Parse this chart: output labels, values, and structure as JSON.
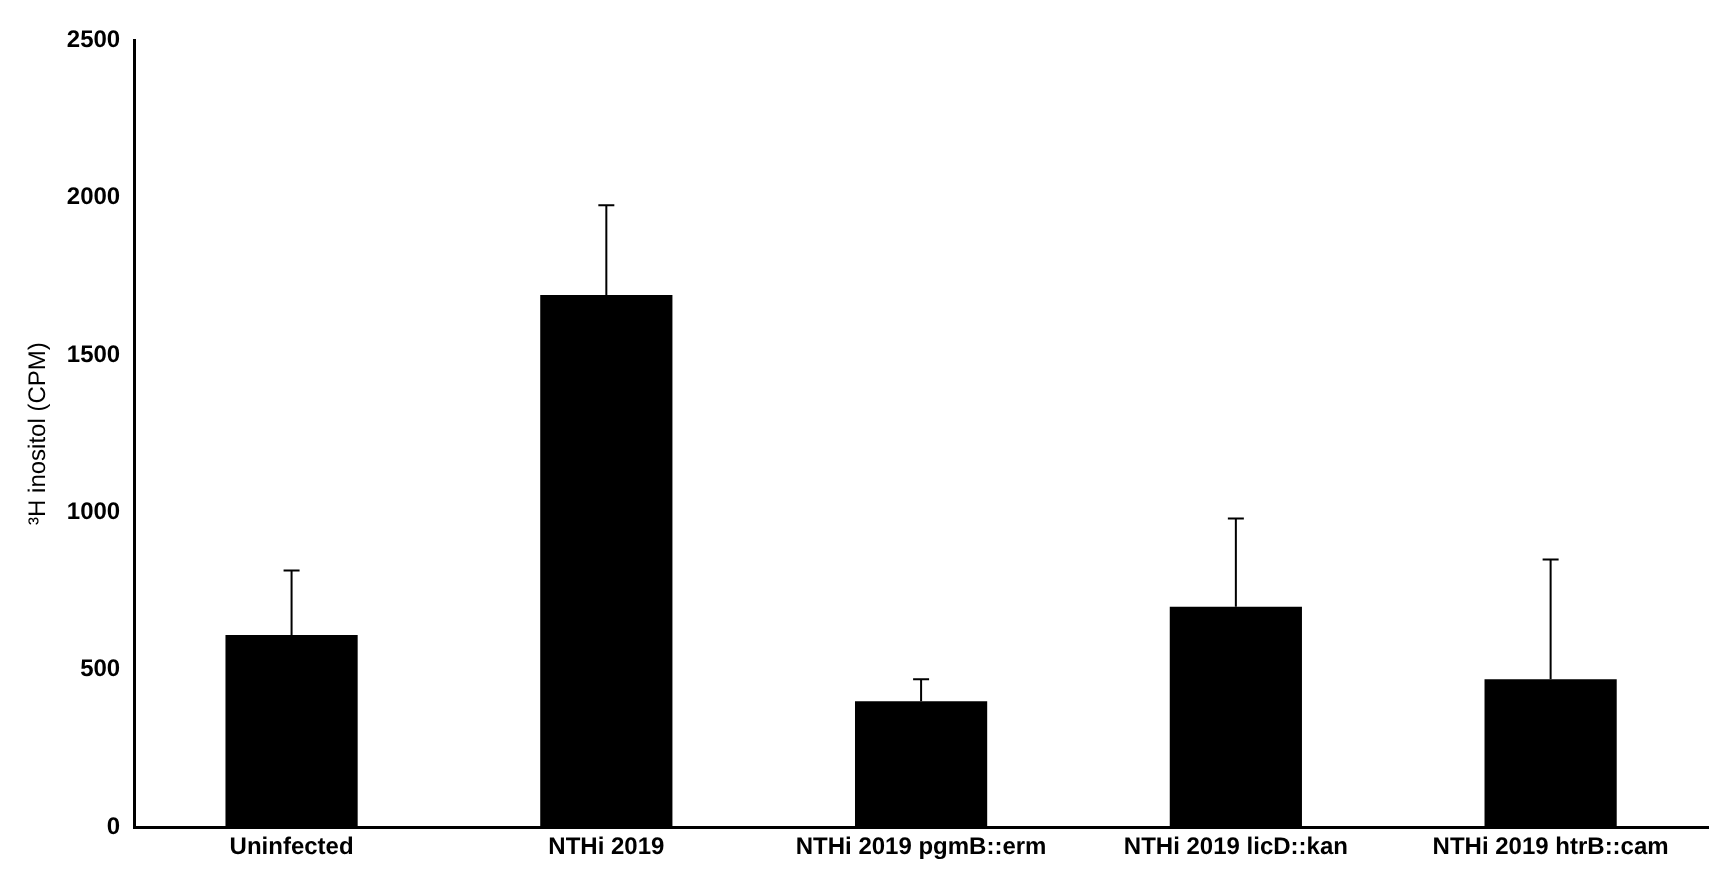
{
  "chart_data": {
    "type": "bar",
    "ylabel": "³H inositol (CPM)",
    "categories": [
      "Uninfected",
      "NTHi 2019",
      "NTHi 2019 pgmB::erm",
      "NTHi 2019 licD::kan",
      "NTHi 2019 htrB::cam"
    ],
    "values": [
      610,
      1690,
      400,
      700,
      470
    ],
    "color": "#000000",
    "errors": [
      [
        610,
        815
      ],
      [
        1690,
        1975
      ],
      [
        400,
        470
      ],
      [
        700,
        980
      ],
      [
        470,
        850
      ]
    ],
    "ylim": [
      0,
      2500
    ],
    "yticks": [
      0,
      500,
      1000,
      1500,
      2000,
      2500
    ],
    "grid": false,
    "legend": false
  }
}
